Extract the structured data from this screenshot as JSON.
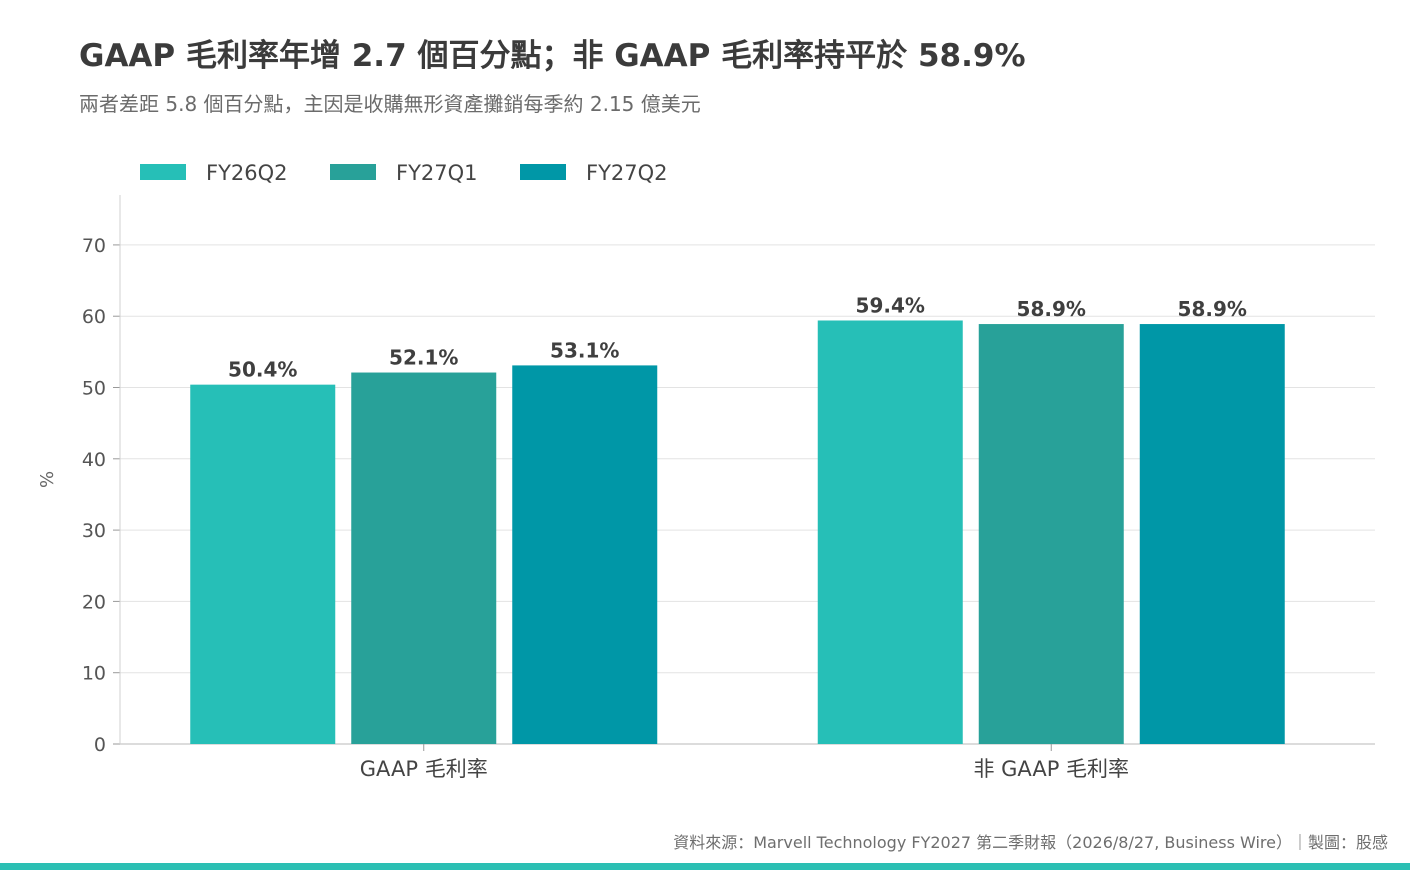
{
  "title": "GAAP 毛利率年增 2.7 個百分點；非 GAAP 毛利率持平於 58.9%",
  "subtitle": "兩者差距 5.8 個百分點，主因是收購無形資產攤銷每季約 2.15 億美元",
  "source": "資料來源：Marvell Technology FY2027 第二季財報（2026/8/27, Business Wire）｜製圖：股感",
  "chart_data": {
    "type": "bar",
    "categories": [
      "GAAP 毛利率",
      "非 GAAP 毛利率"
    ],
    "series": [
      {
        "name": "FY26Q2",
        "color": "#26bfb7",
        "values": [
          50.4,
          59.4
        ],
        "labels": [
          "50.4%",
          "59.4%"
        ]
      },
      {
        "name": "FY27Q1",
        "color": "#28a199",
        "values": [
          52.1,
          58.9
        ],
        "labels": [
          "52.1%",
          "58.9%"
        ]
      },
      {
        "name": "FY27Q2",
        "color": "#0097a7",
        "values": [
          53.1,
          58.9
        ],
        "labels": [
          "53.1%",
          "58.9%"
        ]
      }
    ],
    "ylabel": "%",
    "ylim": [
      0,
      77
    ],
    "yticks": [
      0,
      10,
      20,
      30,
      40,
      50,
      60,
      70
    ],
    "grid": true,
    "legend": "top-left"
  }
}
